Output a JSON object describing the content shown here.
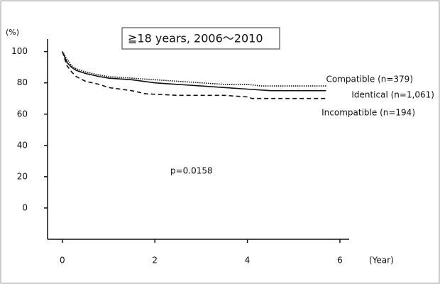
{
  "chart_data": {
    "type": "line",
    "title": "≧18 years, 2006〜2010",
    "y_label": "(%)",
    "x_label": "(Year)",
    "annotation": "p=0.0158",
    "xlim": [
      -0.32,
      6.2
    ],
    "xticks": [
      0,
      2,
      4,
      6
    ],
    "ylim": [
      -20,
      108
    ],
    "yticks": [
      0,
      20,
      40,
      60,
      80,
      100
    ],
    "series": [
      {
        "name": "Compatible (n=379)",
        "color": "#111111",
        "dash": "1.5,1.5",
        "x": [
          0,
          0.1,
          0.2,
          0.3,
          0.5,
          0.8,
          1,
          1.5,
          2,
          2.5,
          3,
          3.5,
          4,
          4.3,
          5.7
        ],
        "values": [
          100,
          95,
          91,
          89,
          87,
          85,
          84,
          83,
          82,
          81,
          80,
          79,
          79,
          78,
          78
        ]
      },
      {
        "name": "Identical (n=1,061)",
        "color": "#111111",
        "dash": "none",
        "x": [
          0,
          0.1,
          0.2,
          0.3,
          0.5,
          0.8,
          1,
          1.5,
          2,
          2.5,
          3,
          3.5,
          4,
          4.5,
          5.7
        ],
        "values": [
          100,
          93,
          90,
          88,
          86,
          84,
          83,
          82,
          80,
          79,
          78,
          77,
          76,
          75,
          75
        ]
      },
      {
        "name": "Incompatible (n=194)",
        "color": "#111111",
        "dash": "6,4",
        "x": [
          0,
          0.1,
          0.2,
          0.3,
          0.5,
          0.8,
          1,
          1.5,
          1.8,
          2.5,
          3,
          3.5,
          4,
          4.1,
          5.7
        ],
        "values": [
          100,
          91,
          87,
          84,
          81,
          79,
          77,
          75,
          73,
          72,
          72,
          72,
          71,
          70,
          70
        ]
      }
    ]
  }
}
